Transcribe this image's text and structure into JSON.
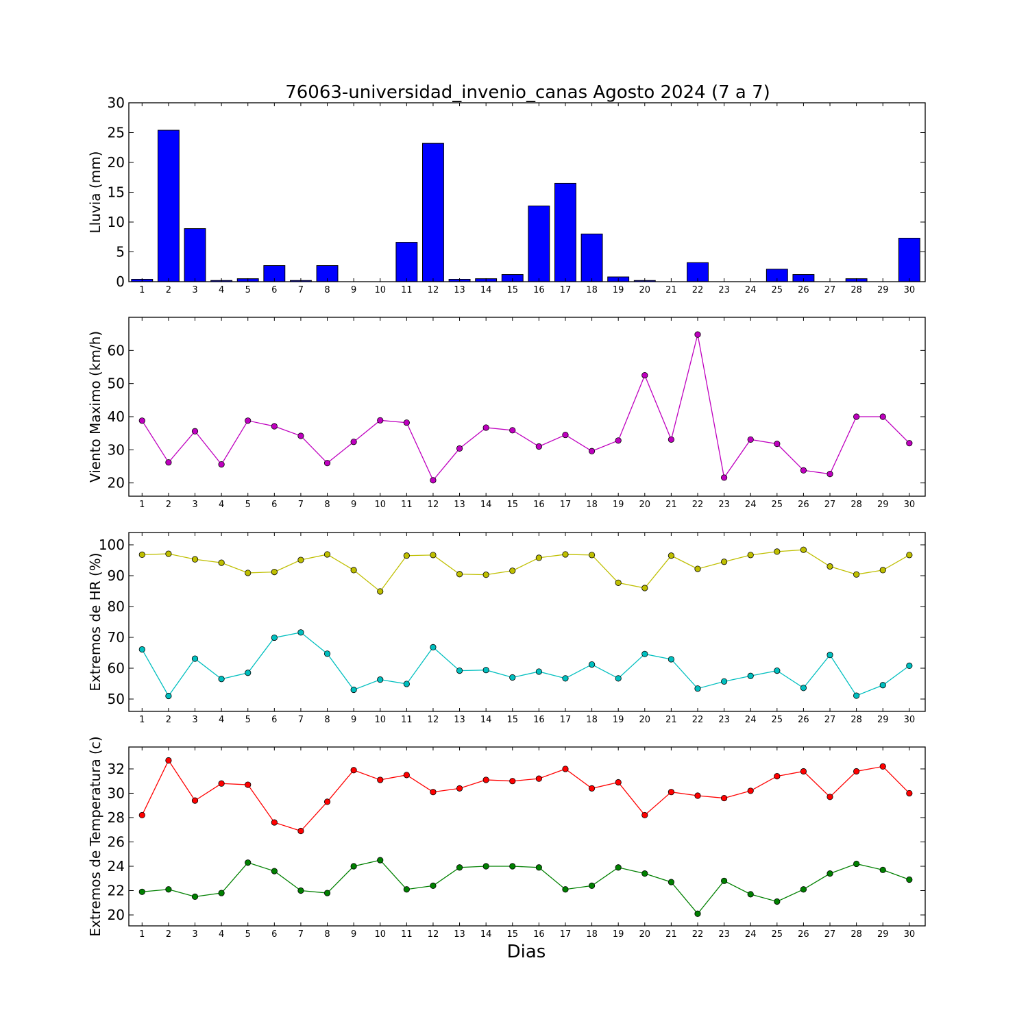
{
  "figure": {
    "title": "76063-universidad_invenio_canas Agosto 2024  (7 a 7)",
    "xlabel": "Dias"
  },
  "chart_data": [
    {
      "type": "bar",
      "ylabel": "Lluvia (mm)",
      "ylim": [
        0,
        30
      ],
      "yticks": [
        0,
        5,
        10,
        15,
        20,
        25,
        30
      ],
      "categories": [
        "1",
        "2",
        "3",
        "4",
        "5",
        "6",
        "7",
        "8",
        "9",
        "10",
        "11",
        "12",
        "13",
        "14",
        "15",
        "16",
        "17",
        "18",
        "19",
        "20",
        "21",
        "22",
        "23",
        "24",
        "25",
        "26",
        "27",
        "28",
        "29",
        "30"
      ],
      "series": [
        {
          "color": "#0000ff",
          "values": [
            0.4,
            25.4,
            8.9,
            0.2,
            0.5,
            2.7,
            0.2,
            2.7,
            0,
            0,
            6.6,
            23.2,
            0.4,
            0.5,
            1.2,
            12.7,
            16.5,
            8.0,
            0.8,
            0.2,
            0,
            3.2,
            0,
            0,
            2.1,
            1.2,
            0,
            0.5,
            0,
            7.3
          ]
        }
      ]
    },
    {
      "type": "line",
      "ylabel": "Viento Maximo (km/h)",
      "ylim": [
        16,
        70
      ],
      "yticks": [
        20,
        30,
        40,
        50,
        60
      ],
      "categories": [
        "1",
        "2",
        "3",
        "4",
        "5",
        "6",
        "7",
        "8",
        "9",
        "10",
        "11",
        "12",
        "13",
        "14",
        "15",
        "16",
        "17",
        "18",
        "19",
        "20",
        "21",
        "22",
        "23",
        "24",
        "25",
        "26",
        "27",
        "28",
        "29",
        "30"
      ],
      "series": [
        {
          "color": "#bf00bf",
          "values": [
            38.8,
            26.2,
            35.6,
            25.6,
            38.8,
            37.1,
            34.2,
            26.0,
            32.4,
            38.9,
            38.2,
            20.8,
            30.4,
            36.7,
            35.9,
            31.0,
            34.5,
            29.6,
            32.8,
            52.5,
            33.1,
            64.8,
            21.6,
            33.1,
            31.8,
            23.8,
            22.7,
            40.0,
            40.0,
            32.0
          ]
        }
      ]
    },
    {
      "type": "line",
      "ylabel": "Extremos de HR (%)",
      "ylim": [
        46,
        104
      ],
      "yticks": [
        50,
        60,
        70,
        80,
        90,
        100
      ],
      "categories": [
        "1",
        "2",
        "3",
        "4",
        "5",
        "6",
        "7",
        "8",
        "9",
        "10",
        "11",
        "12",
        "13",
        "14",
        "15",
        "16",
        "17",
        "18",
        "19",
        "20",
        "21",
        "22",
        "23",
        "24",
        "25",
        "26",
        "27",
        "28",
        "29",
        "30"
      ],
      "series": [
        {
          "color": "#bfbf00",
          "values": [
            96.8,
            97.1,
            95.3,
            94.2,
            90.9,
            91.2,
            95.1,
            96.9,
            91.8,
            84.9,
            96.5,
            96.7,
            90.5,
            90.3,
            91.6,
            95.8,
            96.9,
            96.7,
            87.7,
            86.0,
            96.5,
            92.2,
            94.5,
            96.7,
            97.8,
            98.4,
            93.0,
            90.4,
            91.8,
            96.7
          ]
        },
        {
          "color": "#00bfbf",
          "values": [
            66.1,
            51.0,
            63.1,
            56.5,
            58.5,
            69.9,
            71.6,
            64.7,
            53.0,
            56.3,
            54.9,
            66.8,
            59.2,
            59.4,
            57.0,
            58.9,
            56.7,
            61.2,
            56.7,
            64.6,
            62.9,
            53.4,
            55.7,
            57.5,
            59.2,
            53.6,
            64.3,
            51.1,
            54.5,
            60.8
          ]
        }
      ]
    },
    {
      "type": "line",
      "ylabel": "Extremos de Temperatura (c)",
      "ylim": [
        19.1,
        33.8
      ],
      "yticks": [
        20,
        22,
        24,
        26,
        28,
        30,
        32
      ],
      "categories": [
        "1",
        "2",
        "3",
        "4",
        "5",
        "6",
        "7",
        "8",
        "9",
        "10",
        "11",
        "12",
        "13",
        "14",
        "15",
        "16",
        "17",
        "18",
        "19",
        "20",
        "21",
        "22",
        "23",
        "24",
        "25",
        "26",
        "27",
        "28",
        "29",
        "30"
      ],
      "series": [
        {
          "color": "#ff0000",
          "values": [
            28.2,
            32.7,
            29.4,
            30.8,
            30.7,
            27.6,
            26.9,
            29.3,
            31.9,
            31.1,
            31.5,
            30.1,
            30.4,
            31.1,
            31.0,
            31.2,
            32.0,
            30.4,
            30.9,
            28.2,
            30.1,
            29.8,
            29.6,
            30.2,
            31.4,
            31.8,
            29.7,
            31.8,
            32.2,
            30.0
          ]
        },
        {
          "color": "#008000",
          "values": [
            21.9,
            22.1,
            21.5,
            21.8,
            24.3,
            23.6,
            22.0,
            21.8,
            24.0,
            24.5,
            22.1,
            22.4,
            23.9,
            24.0,
            24.0,
            23.9,
            22.1,
            22.4,
            23.9,
            23.4,
            22.7,
            20.1,
            22.8,
            21.7,
            21.1,
            22.1,
            23.4,
            24.2,
            23.7,
            22.9
          ]
        }
      ]
    }
  ]
}
